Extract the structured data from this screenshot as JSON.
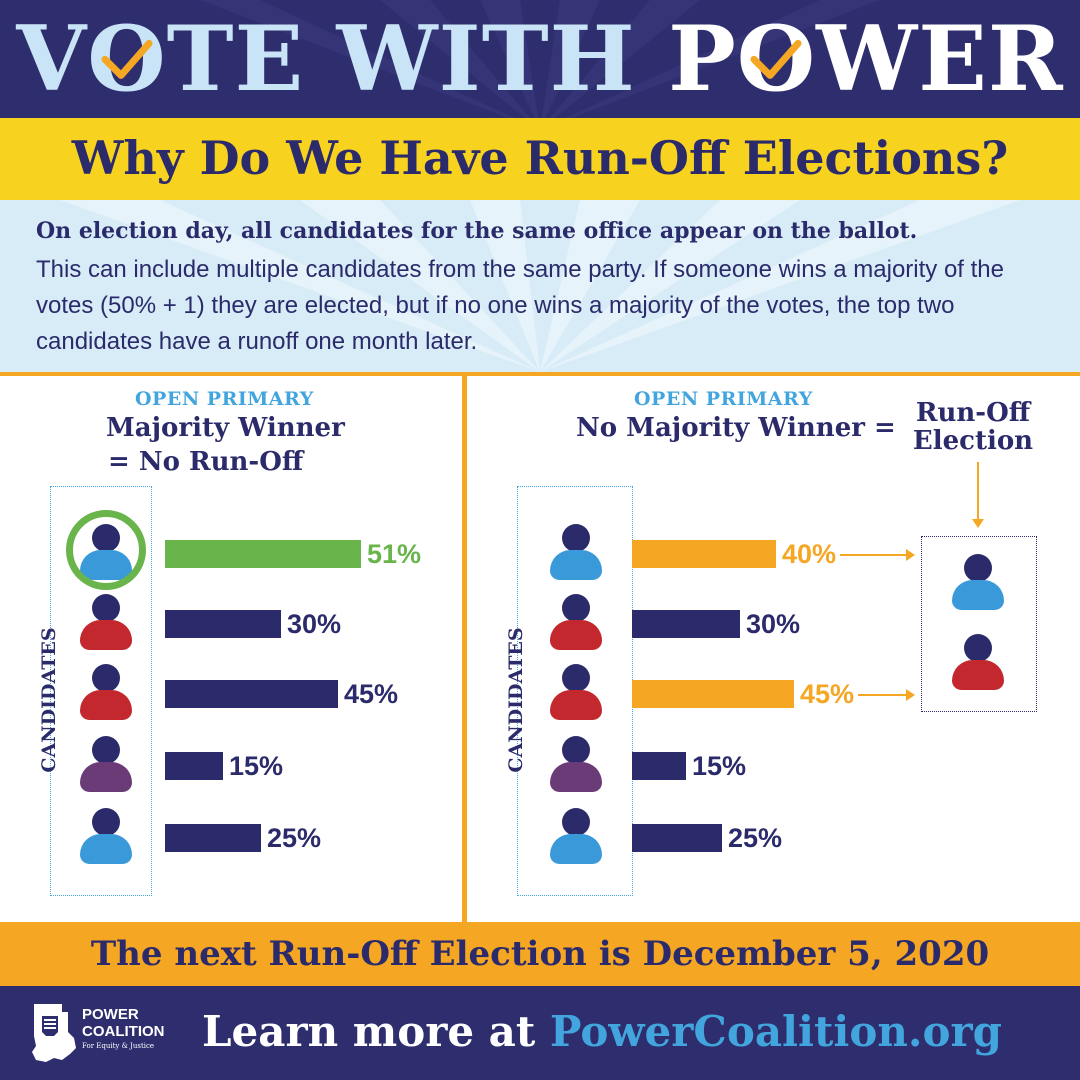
{
  "header": {
    "title_part1": "VOTE WITH",
    "title_part2": "POWER",
    "title_part1_before_check": "V",
    "title_part1_check_letter": "O",
    "title_part1_after_check": "TE WITH",
    "title_part2_before_check": "P",
    "title_part2_check_letter": "O",
    "title_part2_after_check": "WER"
  },
  "question": "Why Do We Have Run-Off Elections?",
  "intro": {
    "bold": "On election day, all candidates for the same office appear on the ballot.",
    "body": "This can include multiple candidates from the same party. If someone wins a majority of the votes (50% + 1)  they are elected, but if no one wins a majority of the votes, the top two candidates have a runoff one month later."
  },
  "left_panel": {
    "subhead": "OPEN PRIMARY",
    "title_line1": "Majority Winner",
    "title_line2": "= No Run-Off",
    "axis_label": "CANDIDATES",
    "candidates": [
      {
        "color": "#3a9ad9",
        "pct_label": "51%",
        "value": 51,
        "bar_color": "#6ab44c",
        "label_color": "#6ab44c",
        "winner": true
      },
      {
        "color": "#c3282e",
        "pct_label": "30%",
        "value": 30,
        "bar_color": "#2b2b6b",
        "label_color": "#2b2b6b"
      },
      {
        "color": "#c3282e",
        "pct_label": "45%",
        "value": 45,
        "bar_color": "#2b2b6b",
        "label_color": "#2b2b6b"
      },
      {
        "color": "#6b3b78",
        "pct_label": "15%",
        "value": 15,
        "bar_color": "#2b2b6b",
        "label_color": "#2b2b6b"
      },
      {
        "color": "#3a9ad9",
        "pct_label": "25%",
        "value": 25,
        "bar_color": "#2b2b6b",
        "label_color": "#2b2b6b"
      }
    ]
  },
  "right_panel": {
    "subhead": "OPEN PRIMARY",
    "title": "No Majority Winner =",
    "runoff_line1": "Run-Off",
    "runoff_line2": "Election",
    "axis_label": "CANDIDATES",
    "candidates": [
      {
        "color": "#3a9ad9",
        "pct_label": "40%",
        "value": 40,
        "bar_color": "#f5a623",
        "label_color": "#f5a623",
        "advances": true
      },
      {
        "color": "#c3282e",
        "pct_label": "30%",
        "value": 30,
        "bar_color": "#2b2b6b",
        "label_color": "#2b2b6b"
      },
      {
        "color": "#c3282e",
        "pct_label": "45%",
        "value": 45,
        "bar_color": "#f5a623",
        "label_color": "#f5a623",
        "advances": true
      },
      {
        "color": "#6b3b78",
        "pct_label": "15%",
        "value": 15,
        "bar_color": "#2b2b6b",
        "label_color": "#2b2b6b"
      },
      {
        "color": "#3a9ad9",
        "pct_label": "25%",
        "value": 25,
        "bar_color": "#2b2b6b",
        "label_color": "#2b2b6b"
      }
    ],
    "runoff_candidates": [
      {
        "color": "#3a9ad9"
      },
      {
        "color": "#c3282e"
      }
    ]
  },
  "date_banner": "The next Run-Off Election is December 5, 2020",
  "footer": {
    "logo_line1": "POWER",
    "logo_line2": "COALITION",
    "logo_tagline": "For Equity & Justice",
    "learn_prefix": "Learn more at ",
    "learn_url": "PowerCoalition.org"
  },
  "colors": {
    "navy": "#2e2e6e",
    "yellow": "#f7d21f",
    "orange": "#f5a623",
    "light_blue": "#42a5dd",
    "green": "#6ab44c"
  }
}
